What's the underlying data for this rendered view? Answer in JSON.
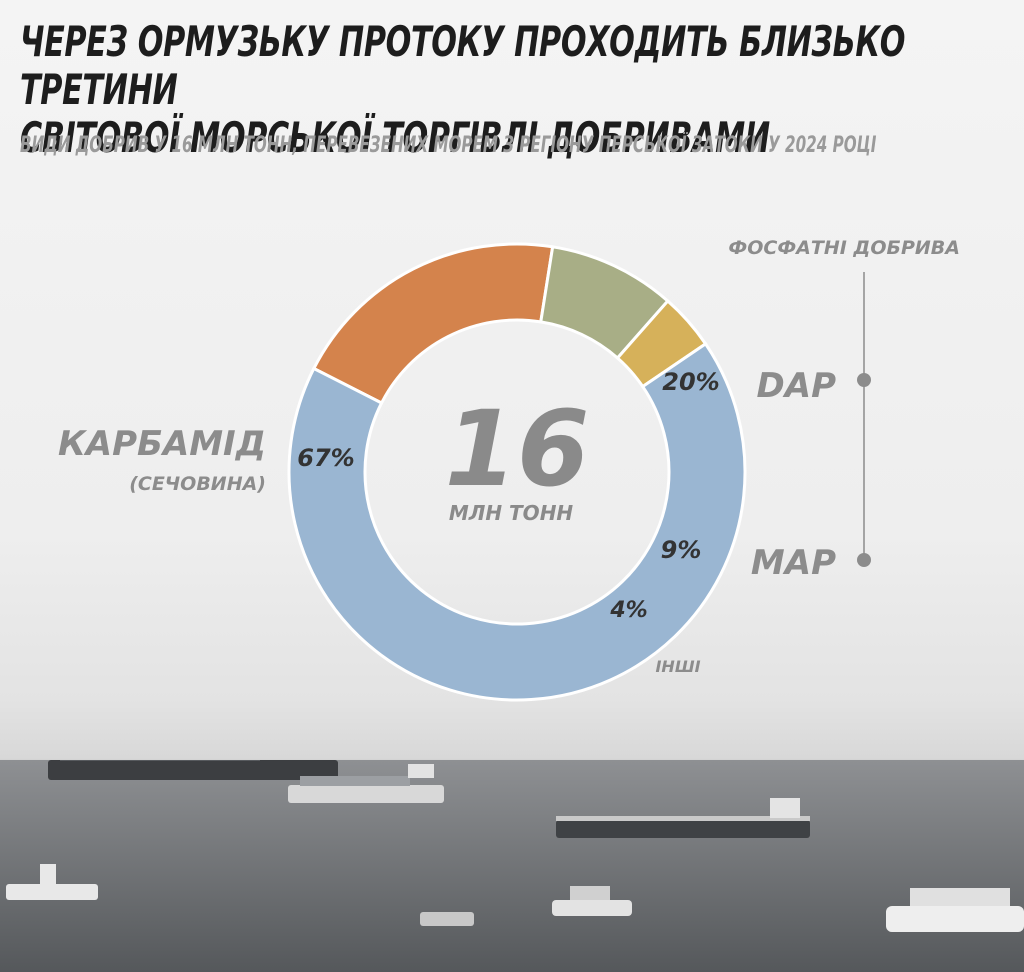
{
  "header": {
    "title_line1": "ЧЕРЕЗ ОРМУЗЬКУ ПРОТОКУ ПРОХОДИТЬ БЛИЗЬКО ТРЕТИНИ",
    "title_line2": "СВІТОВОЇ МОРСЬКОЇ ТОРГІВЛІ ДОБРИВАМИ",
    "subtitle": "ВИДИ ДОБРИВ У 16 МЛН ТОНН, ПЕРЕВЕЗЕНИХ МОРЕМ З РЕГІОНУ ПЕРСЬКОЇ ЗАТОКИ У 2024 РОЦІ"
  },
  "chart_data": {
    "type": "pie",
    "style": "donut",
    "title": "ЧЕРЕЗ ОРМУЗЬКУ ПРОТОКУ ПРОХОДИТЬ БЛИЗЬКО ТРЕТИНИ СВІТОВОЇ МОРСЬКОЇ ТОРГІВЛІ ДОБРИВАМИ",
    "subtitle": "ВИДИ ДОБРИВ У 16 МЛН ТОНН, ПЕРЕВЕЗЕНИХ МОРЕМ З РЕГІОНУ ПЕРСЬКОЇ ЗАТОКИ У 2024 РОЦІ",
    "center_value": "16",
    "center_unit": "МЛН ТОНН",
    "slices": [
      {
        "label": "КАРБАМІД",
        "sublabel": "(СЕЧОВИНА)",
        "value": 67,
        "value_label": "67%",
        "color": "#9ab6d2"
      },
      {
        "label": "DAP",
        "value": 20,
        "value_label": "20%",
        "color": "#d4834c"
      },
      {
        "label": "MAP",
        "value": 9,
        "value_label": "9%",
        "color": "#a8ae86"
      },
      {
        "label": "ІНШІ",
        "value": 4,
        "value_label": "4%",
        "color": "#d6b15a"
      }
    ],
    "group_label": "ФОСФАТНІ ДОБРИВА",
    "group_members": [
      "DAP",
      "MAP"
    ]
  },
  "colors": {
    "title": "#1d1d1d",
    "subtitle": "#9a9a9a",
    "label_gray": "#8c8c8c",
    "center_number": "#8a8a8a",
    "bracket": "#8c8c8c"
  }
}
